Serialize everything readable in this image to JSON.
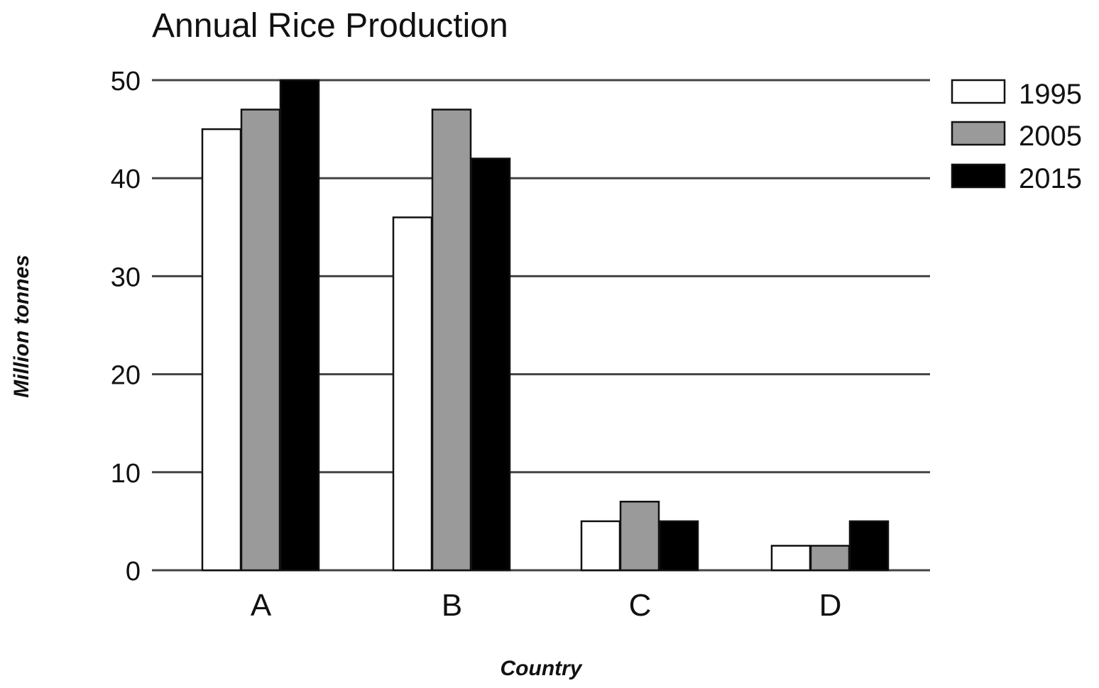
{
  "chart_data": {
    "type": "bar",
    "title": "Annual Rice Production",
    "xlabel": "Country",
    "ylabel": "Million tonnes",
    "categories": [
      "A",
      "B",
      "C",
      "D"
    ],
    "ylim": [
      0,
      50
    ],
    "yticks": [
      0,
      10,
      20,
      30,
      40,
      50
    ],
    "grid": true,
    "legend_position": "top-right",
    "series": [
      {
        "name": "1995",
        "color": "#ffffff",
        "values": [
          45,
          36,
          5,
          2.5
        ]
      },
      {
        "name": "2005",
        "color": "#9a9a9a",
        "values": [
          47,
          47,
          7,
          2.5
        ]
      },
      {
        "name": "2015",
        "color": "#000000",
        "values": [
          50,
          42,
          5,
          5
        ]
      }
    ]
  }
}
